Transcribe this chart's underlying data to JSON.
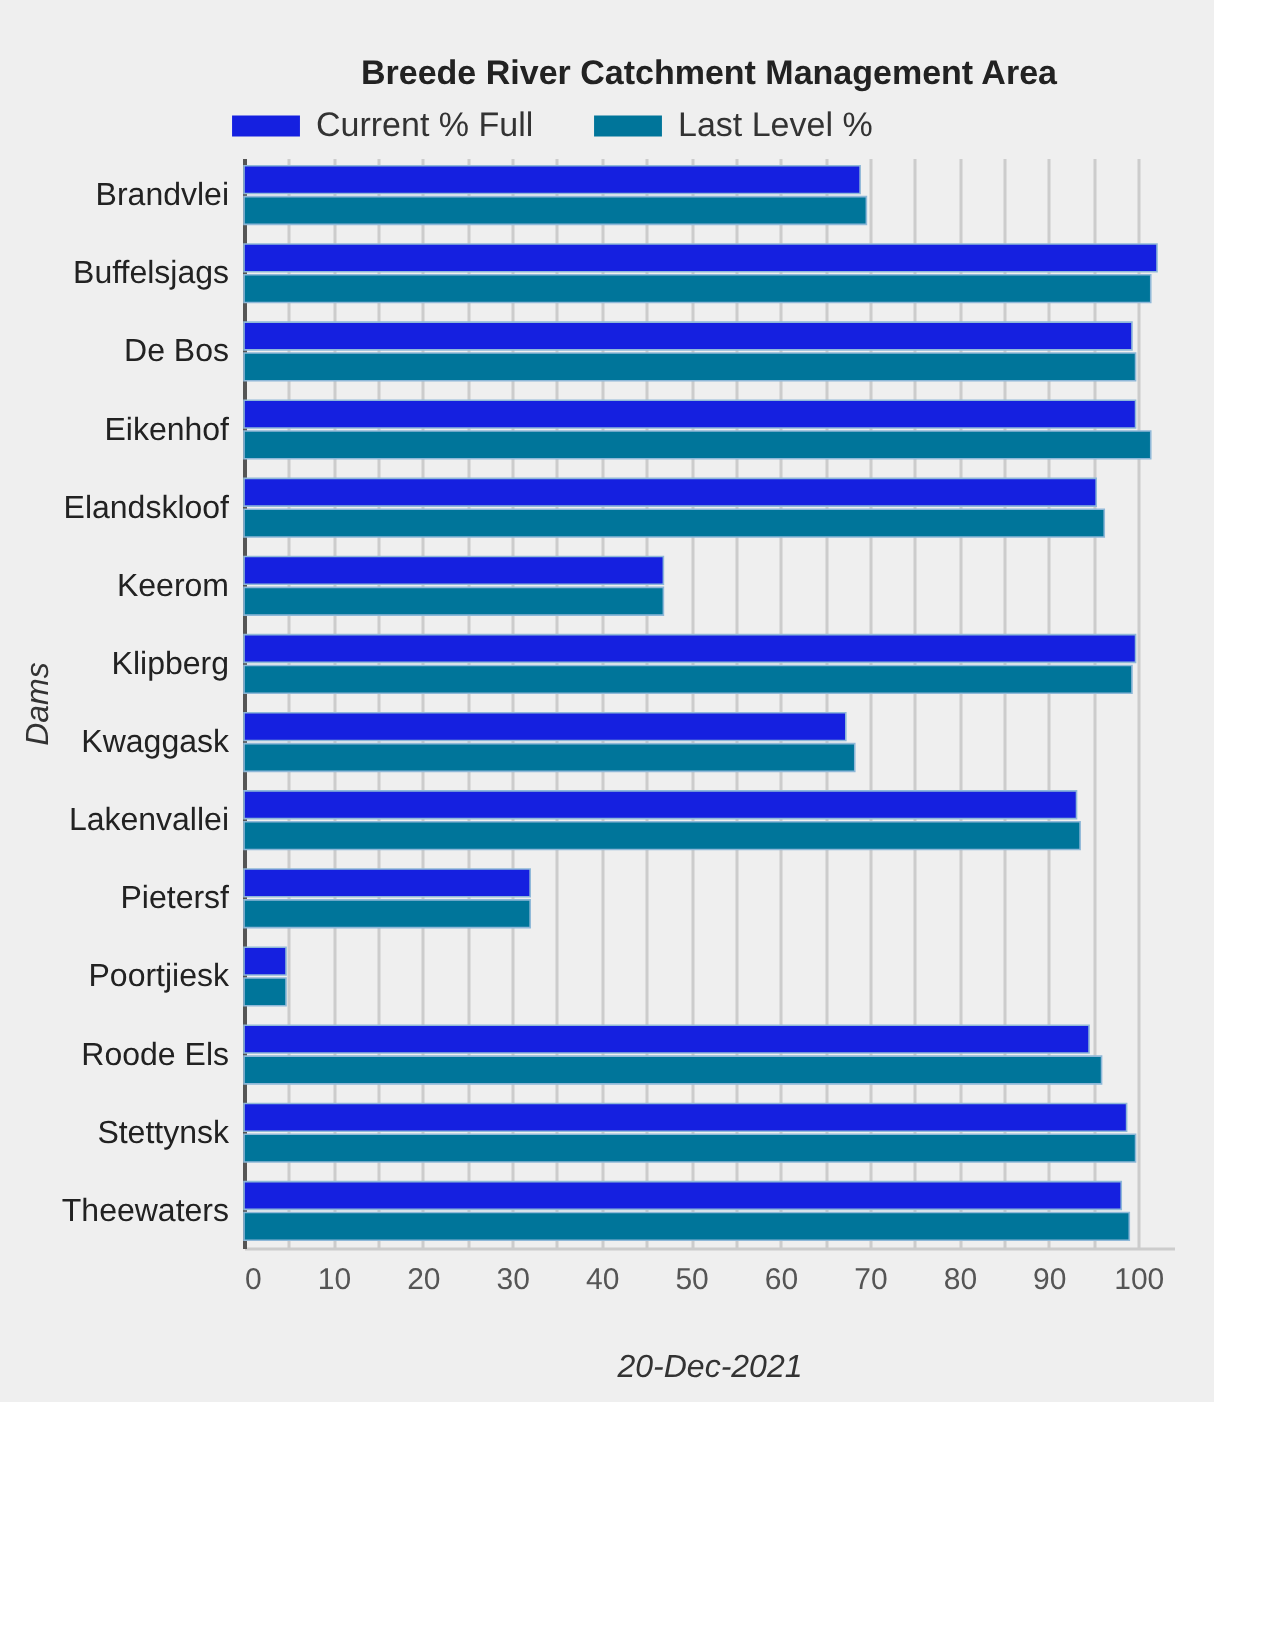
{
  "chart_data": {
    "type": "bar",
    "orientation": "horizontal",
    "title": "Breede River Catchment Management Area",
    "xlabel": "20-Dec-2021",
    "ylabel": "Dams",
    "categories": [
      "Brandvlei",
      "Buffelsjags",
      "De Bos",
      "Eikenhof",
      "Elandskloof",
      "Keerom",
      "Klipberg",
      "Kwaggask",
      "Lakenvallei",
      "Pietersf",
      "Poortjiesk",
      "Roode Els",
      "Stettynsk",
      "Theewaters"
    ],
    "series": [
      {
        "name": "Current % Full",
        "color": "#1520e0",
        "values": [
          68.9,
          102.1,
          99.3,
          99.7,
          95.3,
          46.9,
          99.7,
          67.3,
          93.1,
          32.0,
          4.7,
          94.5,
          98.7,
          98.1
        ]
      },
      {
        "name": "Last Level %",
        "color": "#00759a",
        "values": [
          69.6,
          101.4,
          99.7,
          101.4,
          96.2,
          46.9,
          99.3,
          68.3,
          93.5,
          32.0,
          4.7,
          95.9,
          99.7,
          99.0
        ]
      }
    ],
    "xlim": [
      0,
      104
    ],
    "xticks": [
      0,
      {
        "value": 5,
        "label": null
      },
      10,
      {
        "value": 15,
        "label": null
      },
      20,
      {
        "value": 25,
        "label": null
      },
      30,
      {
        "value": 35,
        "label": null
      },
      40,
      {
        "value": 45,
        "label": null
      },
      50,
      {
        "value": 55,
        "label": null
      },
      60,
      {
        "value": 65,
        "label": null
      },
      70,
      {
        "value": 75,
        "label": null
      },
      80,
      {
        "value": 85,
        "label": null
      },
      90,
      {
        "value": 95,
        "label": null
      },
      100
    ],
    "grid": "x",
    "legend": "top"
  }
}
